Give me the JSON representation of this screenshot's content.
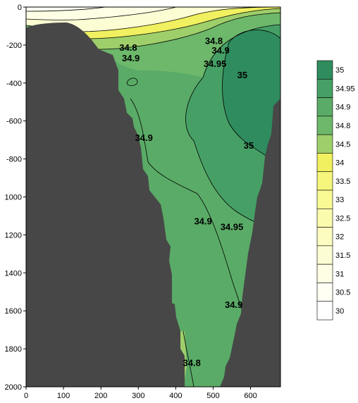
{
  "chart_data": {
    "type": "heatmap",
    "title": "",
    "xlabel": "",
    "ylabel": "",
    "xlim": [
      0,
      680
    ],
    "ylim": [
      2000,
      0
    ],
    "x_ticks": [
      0,
      100,
      200,
      300,
      400,
      500,
      600
    ],
    "y_ticks": [
      0,
      200,
      400,
      600,
      800,
      1000,
      1200,
      1400,
      1600,
      1800,
      2000
    ],
    "x_tick_labels": [
      "0",
      "100",
      "200",
      "300",
      "400",
      "500",
      "600"
    ],
    "y_tick_labels": [
      "0",
      "-200",
      "-400",
      "-600",
      "-800",
      "1000",
      "1200",
      "1400",
      "1600",
      "1800",
      "2000"
    ],
    "colorbar": {
      "levels": [
        30,
        30.5,
        31,
        31.5,
        32,
        32.5,
        33,
        33.5,
        34,
        34.5,
        34.8,
        34.9,
        34.95,
        35
      ],
      "labels": [
        "30",
        "30.5",
        "31",
        "31.5",
        "32",
        "32.5",
        "33",
        "33.5",
        "34",
        "34.5",
        "34.8",
        "34.9",
        "34.95",
        "35"
      ],
      "colors": [
        "#ffffff",
        "#fffff4",
        "#fefee4",
        "#fdfdd3",
        "#fcfcc0",
        "#fbfbad",
        "#fafa95",
        "#f6f67c",
        "#f0f060",
        "#9fcf6a",
        "#6db86b",
        "#5aab67",
        "#46a066",
        "#2f8c5e"
      ]
    },
    "contour_labels": [
      {
        "text": "34.8",
        "x": 273,
        "y": 230
      },
      {
        "text": "34.9",
        "x": 280,
        "y": 285
      },
      {
        "text": "34.8",
        "x": 502,
        "y": 195
      },
      {
        "text": "34.9",
        "x": 520,
        "y": 245
      },
      {
        "text": "34.95",
        "x": 505,
        "y": 315
      },
      {
        "text": "35",
        "x": 578,
        "y": 375
      },
      {
        "text": "35",
        "x": 595,
        "y": 745
      },
      {
        "text": "34.9",
        "x": 315,
        "y": 705
      },
      {
        "text": "34.9",
        "x": 473,
        "y": 1145
      },
      {
        "text": "34.95",
        "x": 550,
        "y": 1175
      },
      {
        "text": "34.9",
        "x": 555,
        "y": 1585
      },
      {
        "text": "34.8",
        "x": 443,
        "y": 1890
      }
    ]
  }
}
